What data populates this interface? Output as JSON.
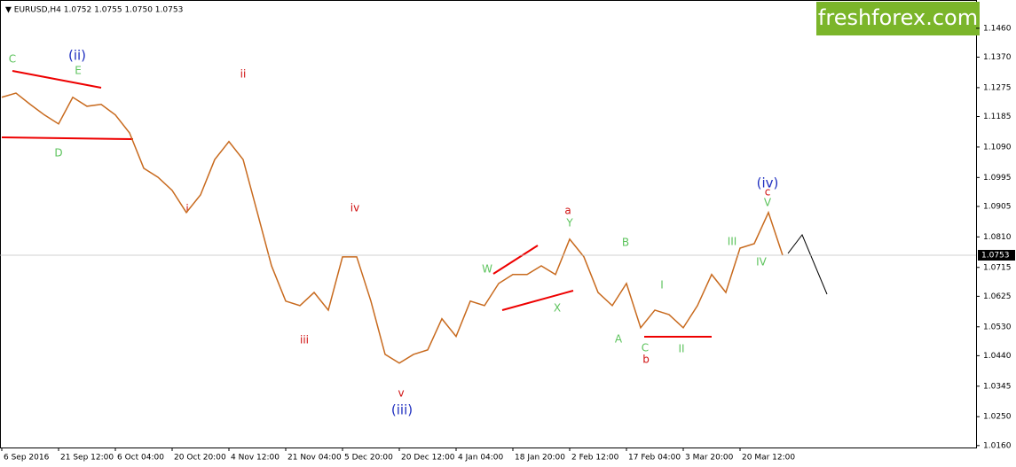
{
  "header": "EURUSD,H4  1.0752 1.0755 1.0750 1.0753",
  "logo": "freshforex.com",
  "annotations": [
    "C",
    "(ii)",
    "E",
    "D",
    "ii",
    "i",
    "iv",
    "iii",
    "v",
    "(iii)",
    "W",
    "X",
    "a",
    "Y",
    "B",
    "A",
    "C",
    "b",
    "I",
    "II",
    "III",
    "IV",
    "V",
    "c",
    "(iv)"
  ],
  "chart_data": {
    "type": "line",
    "color": "#c86a1e",
    "categories": [
      "6 Sep 2016",
      null,
      null,
      null,
      "21 Sep 12:00",
      null,
      null,
      null,
      "6 Oct 04:00",
      null,
      null,
      null,
      "20 Oct 20:00",
      null,
      null,
      null,
      "4 Nov 12:00",
      null,
      null,
      null,
      "21 Nov 04:00",
      null,
      null,
      null,
      "5 Dec 20:00",
      null,
      null,
      null,
      "20 Dec 12:00",
      null,
      null,
      null,
      "4 Jan 04:00",
      null,
      null,
      null,
      "18 Jan 20:00",
      null,
      null,
      null,
      "2 Feb 12:00",
      null,
      null,
      null,
      "17 Feb 04:00",
      null,
      null,
      null,
      "3 Mar 20:00",
      null,
      null,
      null,
      "20 Mar 12:00",
      null,
      null,
      null
    ],
    "values": [
      1.1245,
      1.1258,
      1.1223,
      1.119,
      1.1162,
      1.1245,
      1.1217,
      1.1223,
      1.119,
      1.1134,
      1.1024,
      1.0996,
      1.0955,
      1.0886,
      1.0941,
      1.1051,
      1.1107,
      1.1051,
      1.0886,
      1.072,
      1.061,
      1.0596,
      1.0637,
      1.0582,
      1.0748,
      1.0748,
      1.061,
      1.0444,
      1.0417,
      1.0444,
      1.0458,
      1.0555,
      1.05,
      1.061,
      1.0596,
      1.0665,
      1.0693,
      1.0693,
      1.072,
      1.0693,
      1.0803,
      1.0748,
      1.0637,
      1.0596,
      1.0665,
      1.0527,
      1.0582,
      1.0568,
      1.0527,
      1.0596,
      1.0693,
      1.0637,
      1.0775,
      1.0789,
      1.0886,
      1.0753
    ],
    "ylim": [
      1.0154,
      1.1548
    ],
    "yticks": [
      {
        "value": 1.146,
        "label": "1.1460"
      },
      {
        "value": 1.137,
        "label": "1.1370"
      },
      1.1275,
      1.1185,
      {
        "value": 1.109,
        "label": "1.1090"
      },
      1.0995,
      {
        "value": 1.0905,
        "label": "1.0905"
      },
      {
        "value": 1.081,
        "label": "1.0810"
      },
      1.0715,
      1.0625,
      {
        "value": 1.053,
        "label": "1.0530"
      },
      {
        "value": 1.044,
        "label": "1.0440"
      },
      1.0345,
      {
        "value": 1.025,
        "label": "1.0250"
      },
      {
        "value": 1.016,
        "label": "1.0160"
      }
    ]
  }
}
